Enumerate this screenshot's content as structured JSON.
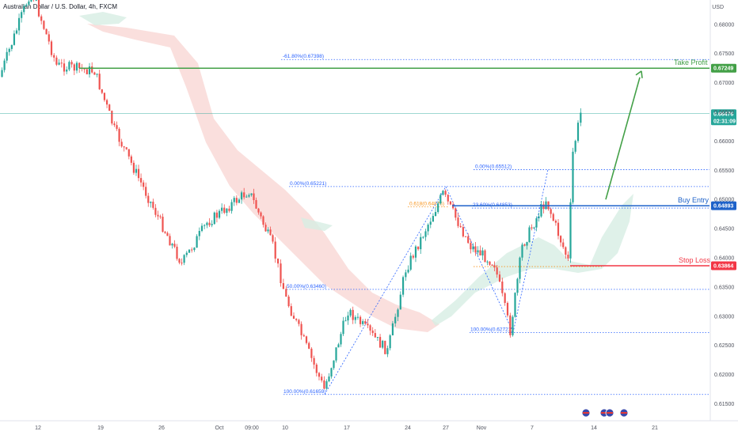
{
  "header": {
    "title": "Australian Dollar / U.S. Dollar, 4h, FXCM",
    "currency": "USD"
  },
  "colors": {
    "bull": "#26a69a",
    "bear": "#ef5350",
    "take_profit": "#43a047",
    "buy_entry": "#1e62c9",
    "stop_loss": "#f23645",
    "fib": "#2962ff",
    "fib_orange": "#f7931a",
    "cloud_red": "#f8d4d2",
    "cloud_green": "#d7ede3",
    "price_line": "#26a69a"
  },
  "chart_data": {
    "type": "candlestick",
    "title": "Australian Dollar / U.S. Dollar, 4h, FXCM",
    "yaxis_unit": "USD",
    "ylim": [
      0.6135,
      0.6865
    ],
    "y_ticks": [
      "0.68000",
      "0.67500",
      "0.67000",
      "0.66500",
      "0.66000",
      "0.65500",
      "0.65000",
      "0.64500",
      "0.64000",
      "0.63500",
      "0.63000",
      "0.62500",
      "0.62000",
      "0.61500"
    ],
    "x_ticks": [
      "12",
      "19",
      "26",
      "Oct",
      "09:00",
      "10",
      "17",
      "24",
      "27",
      "Nov",
      "7",
      "14",
      "21"
    ],
    "price_path": [
      {
        "t": "Sep 9",
        "close": 0.671
      },
      {
        "t": "Sep 12",
        "close": 0.686
      },
      {
        "t": "Sep 15",
        "close": 0.673
      },
      {
        "t": "Sep 19",
        "close": 0.672
      },
      {
        "t": "Sep 21",
        "close": 0.662
      },
      {
        "t": "Sep 26",
        "close": 0.647
      },
      {
        "t": "Sep 28",
        "close": 0.639
      },
      {
        "t": "Oct 1",
        "close": 0.646
      },
      {
        "t": "Oct 5",
        "close": 0.6515
      },
      {
        "t": "Oct 8",
        "close": 0.642
      },
      {
        "t": "Oct 10",
        "close": 0.633
      },
      {
        "t": "Oct 13",
        "close": 0.6175
      },
      {
        "t": "Oct 17",
        "close": 0.631
      },
      {
        "t": "Oct 21",
        "close": 0.624
      },
      {
        "t": "Oct 24",
        "close": 0.638
      },
      {
        "t": "Oct 27",
        "close": 0.651
      },
      {
        "t": "Oct 30",
        "close": 0.642
      },
      {
        "t": "Nov 2",
        "close": 0.639
      },
      {
        "t": "Nov 4",
        "close": 0.6275
      },
      {
        "t": "Nov 6",
        "close": 0.642
      },
      {
        "t": "Nov 8",
        "close": 0.65
      },
      {
        "t": "Nov 10",
        "close": 0.6395
      },
      {
        "t": "Nov 11",
        "close": 0.658
      },
      {
        "t": "Nov 12",
        "close": 0.6648
      }
    ],
    "horizontal_levels": [
      {
        "name": "Take Profit",
        "value": 0.67249,
        "label": "Take Profit",
        "tag": "0.67249"
      },
      {
        "name": "Buy Entry",
        "value": 0.64893,
        "label": "Buy Entry",
        "tag": "0.64893"
      },
      {
        "name": "Stop Loss",
        "value": 0.63864,
        "label": "Stop Loss",
        "tag": "0.63864"
      },
      {
        "name": "Current Price",
        "value": 0.66476,
        "tag": "0.66476",
        "countdown": "02:31:09"
      }
    ],
    "fib_levels": [
      {
        "label": "-61.80%(0.67398)",
        "value": 0.67398
      },
      {
        "label": "0.00%(0.65512)",
        "value": 0.65512
      },
      {
        "label": "0.00%(0.65221)",
        "value": 0.65221
      },
      {
        "label": "23.60%(0.64853)",
        "value": 0.64853
      },
      {
        "label": "0.618(0.64876)",
        "value": 0.64876
      },
      {
        "label": "50.00%(0.63460)",
        "value": 0.6346
      },
      {
        "label": "100.00%(0.62721)",
        "value": 0.62721
      },
      {
        "label": "100.00%(0.61659)",
        "value": 0.61659
      }
    ],
    "projection_arrow": {
      "from": {
        "t": "Nov 13",
        "value": 0.65
      },
      "to": {
        "t": "Nov 16",
        "value": 0.672
      }
    },
    "grid": false
  }
}
